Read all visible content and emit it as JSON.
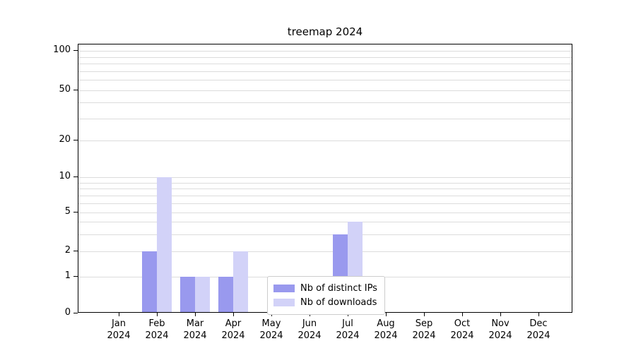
{
  "chart_data": {
    "type": "bar",
    "title": "treemap 2024",
    "scale": "symlog",
    "grid": "horizontal-minor",
    "ylim": [
      0,
      100
    ],
    "yticks": [
      0,
      1,
      2,
      5,
      10,
      20,
      50,
      100
    ],
    "minor_gridline_values": [
      1,
      2,
      3,
      4,
      5,
      6,
      7,
      8,
      9,
      10,
      20,
      30,
      40,
      50,
      60,
      70,
      80,
      90,
      100
    ],
    "categories": [
      {
        "month": "Jan",
        "year": "2024"
      },
      {
        "month": "Feb",
        "year": "2024"
      },
      {
        "month": "Mar",
        "year": "2024"
      },
      {
        "month": "Apr",
        "year": "2024"
      },
      {
        "month": "May",
        "year": "2024"
      },
      {
        "month": "Jun",
        "year": "2024"
      },
      {
        "month": "Jul",
        "year": "2024"
      },
      {
        "month": "Aug",
        "year": "2024"
      },
      {
        "month": "Sep",
        "year": "2024"
      },
      {
        "month": "Oct",
        "year": "2024"
      },
      {
        "month": "Nov",
        "year": "2024"
      },
      {
        "month": "Dec",
        "year": "2024"
      }
    ],
    "series": [
      {
        "name": "Nb of distinct IPs",
        "color": "#9999ee",
        "values": [
          0,
          2,
          1,
          1,
          0,
          0,
          3,
          0,
          0,
          0,
          0,
          0
        ]
      },
      {
        "name": "Nb of downloads",
        "color": "#d2d2f8",
        "values": [
          0,
          10,
          1,
          2,
          0,
          0,
          4,
          0,
          0,
          0,
          0,
          0
        ]
      }
    ],
    "legend_position": "lower center"
  }
}
